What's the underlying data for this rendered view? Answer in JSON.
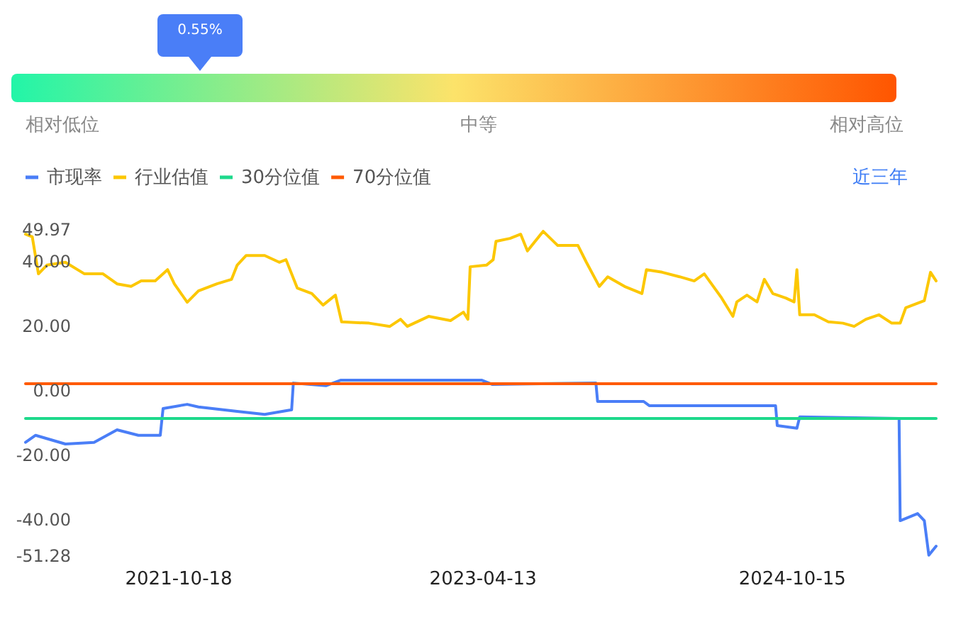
{
  "chart_data": [
    {
      "type": "other",
      "annotations": [
        "0.55%"
      ],
      "categories": [
        "相对低位",
        "中等",
        "相对高位"
      ],
      "colors": [
        "#22f5a8",
        "#fce36a",
        "#ff5500"
      ]
    },
    {
      "type": "line",
      "legend": "top left",
      "annotations": [
        "近三年"
      ],
      "xlim": [
        "2021-01-18",
        "2025-06-28"
      ],
      "xticks": [
        {
          "value": "2021-10-18",
          "label": "2021-10-18"
        },
        {
          "value": "2023-04-13",
          "label": "2023-04-13"
        },
        {
          "value": "2024-10-15",
          "label": "2024-10-15"
        }
      ],
      "ylim": [
        -51.28,
        49.97
      ],
      "yticks": [
        49.97,
        {
          "value": 40,
          "label": "40.00"
        },
        {
          "value": 20,
          "label": "20.00"
        },
        {
          "value": 0,
          "label": "0.00"
        },
        {
          "value": -20,
          "label": "-20.00"
        },
        {
          "value": -40,
          "label": "-40.00"
        },
        -51.28
      ],
      "series": [
        {
          "name": "市现率",
          "color": "#4a7ef7",
          "x": [
            "2021-01-18",
            "2021-02-05",
            "2021-03-30",
            "2021-05-20",
            "2021-06-30",
            "2021-08-07",
            "2021-09-15",
            "2021-09-20",
            "2021-11-02",
            "2021-11-22",
            "2022-01-30",
            "2022-03-20",
            "2022-05-07",
            "2022-05-10",
            "2022-07-07",
            "2022-08-02",
            "2023-04-11",
            "2023-04-29",
            "2023-10-31",
            "2023-11-03",
            "2024-01-24",
            "2024-02-03",
            "2024-09-15",
            "2024-09-18",
            "2024-10-23",
            "2024-10-28",
            "2025-04-23",
            "2025-04-25",
            "2025-05-26",
            "2025-06-07",
            "2025-06-15",
            "2025-06-28"
          ],
          "values": [
            -16.0,
            -13.8,
            -16.5,
            -16.0,
            -12.1,
            -13.8,
            -13.8,
            -5.5,
            -4.2,
            -5.0,
            -6.4,
            -7.3,
            -5.9,
            2.4,
            1.6,
            3.3,
            3.3,
            2.0,
            2.4,
            -3.3,
            -3.3,
            -4.6,
            -4.6,
            -10.8,
            -11.6,
            -8.1,
            -8.6,
            -40.3,
            -38.1,
            -40.3,
            -51.0,
            -48.2
          ]
        },
        {
          "name": "行业估值",
          "color": "#fcc700",
          "x": [
            "2021-01-18",
            "2021-01-30",
            "2021-02-10",
            "2021-02-25",
            "2021-03-30",
            "2021-05-03",
            "2021-06-05",
            "2021-06-30",
            "2021-07-25",
            "2021-08-12",
            "2021-09-06",
            "2021-09-28",
            "2021-10-10",
            "2021-11-02",
            "2021-11-22",
            "2021-12-25",
            "2022-01-20",
            "2022-01-30",
            "2022-02-15",
            "2022-03-20",
            "2022-04-15",
            "2022-04-27",
            "2022-05-17",
            "2022-06-12",
            "2022-07-02",
            "2022-07-24",
            "2022-08-04",
            "2022-09-22",
            "2022-10-29",
            "2022-11-17",
            "2022-11-29",
            "2023-01-06",
            "2023-02-14",
            "2023-03-09",
            "2023-03-17",
            "2023-03-21",
            "2023-04-19",
            "2023-05-01",
            "2023-05-06",
            "2023-05-31",
            "2023-06-19",
            "2023-07-01",
            "2023-07-29",
            "2023-08-24",
            "2023-09-29",
            "2023-10-14",
            "2023-11-06",
            "2023-11-21",
            "2023-12-21",
            "2024-01-21",
            "2024-01-29",
            "2024-02-26",
            "2024-03-28",
            "2024-04-23",
            "2024-05-11",
            "2024-06-11",
            "2024-07-01",
            "2024-07-08",
            "2024-07-26",
            "2024-08-13",
            "2024-08-26",
            "2024-09-10",
            "2024-10-03",
            "2024-10-18",
            "2024-10-23",
            "2024-10-28",
            "2024-11-23",
            "2024-12-18",
            "2025-01-13",
            "2025-02-02",
            "2025-02-23",
            "2025-03-18",
            "2025-04-10",
            "2025-04-25",
            "2025-05-05",
            "2025-06-07",
            "2025-06-18",
            "2025-06-28"
          ],
          "values": [
            48.6,
            47.8,
            36.3,
            39.0,
            39.9,
            36.3,
            36.3,
            33.2,
            32.4,
            34.1,
            34.1,
            37.6,
            33.2,
            27.5,
            31.0,
            33.2,
            34.6,
            39.0,
            42.0,
            42.0,
            39.9,
            40.7,
            31.9,
            30.2,
            26.6,
            29.7,
            21.4,
            21.0,
            20.0,
            22.2,
            20.0,
            23.1,
            21.8,
            24.4,
            22.2,
            38.5,
            39.0,
            40.7,
            46.4,
            47.3,
            48.6,
            43.4,
            49.5,
            45.1,
            45.1,
            39.9,
            32.4,
            35.4,
            32.4,
            30.2,
            37.6,
            36.8,
            35.4,
            34.1,
            36.3,
            28.8,
            23.1,
            27.6,
            29.7,
            27.6,
            34.6,
            30.2,
            28.8,
            27.6,
            37.6,
            23.6,
            23.6,
            21.4,
            21.0,
            20.0,
            22.2,
            23.6,
            21.0,
            21.0,
            25.8,
            28.0,
            36.8,
            34.1
          ]
        },
        {
          "name": "30分位值",
          "color": "#1ed98c",
          "x": [
            "2021-01-18",
            "2025-06-28"
          ],
          "values": [
            -8.6,
            -8.6
          ]
        },
        {
          "name": "70分位值",
          "color": "#ff5a00",
          "x": [
            "2021-01-18",
            "2025-06-28"
          ],
          "values": [
            2.2,
            2.2
          ]
        }
      ]
    }
  ]
}
